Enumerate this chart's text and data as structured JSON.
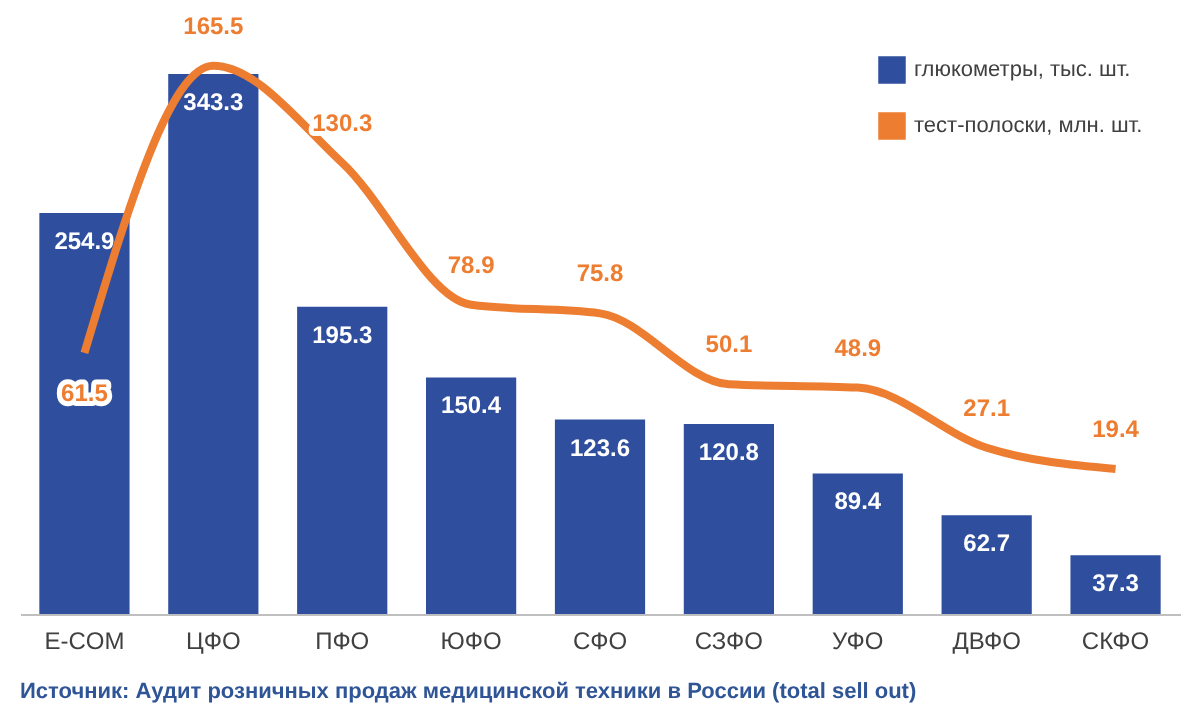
{
  "chart_data": {
    "type": "bar",
    "categories": [
      "E-COM",
      "ЦФО",
      "ПФО",
      "ЮФО",
      "СФО",
      "СЗФО",
      "УФО",
      "ДВФО",
      "СКФО"
    ],
    "series": [
      {
        "name": "глюкометры, тыс. шт.",
        "color": "#2f4f9e",
        "values": [
          254.9,
          343.3,
          195.3,
          150.4,
          123.6,
          120.8,
          89.4,
          62.7,
          37.3
        ]
      },
      {
        "name": "тест-полоски, млн. шт.",
        "type": "line",
        "axis": "y2",
        "color": "#ed7d31",
        "values": [
          61.5,
          165.5,
          130.3,
          78.9,
          75.8,
          50.1,
          48.9,
          27.1,
          19.4
        ]
      }
    ],
    "data_labels": true,
    "tick_labels": "x",
    "grid": false,
    "legend": "top right",
    "marker": "none",
    "line_style": "solid",
    "annotations": [
      "Источник: Аудит розничных продаж медицинской техники в России (total sell out)"
    ]
  }
}
